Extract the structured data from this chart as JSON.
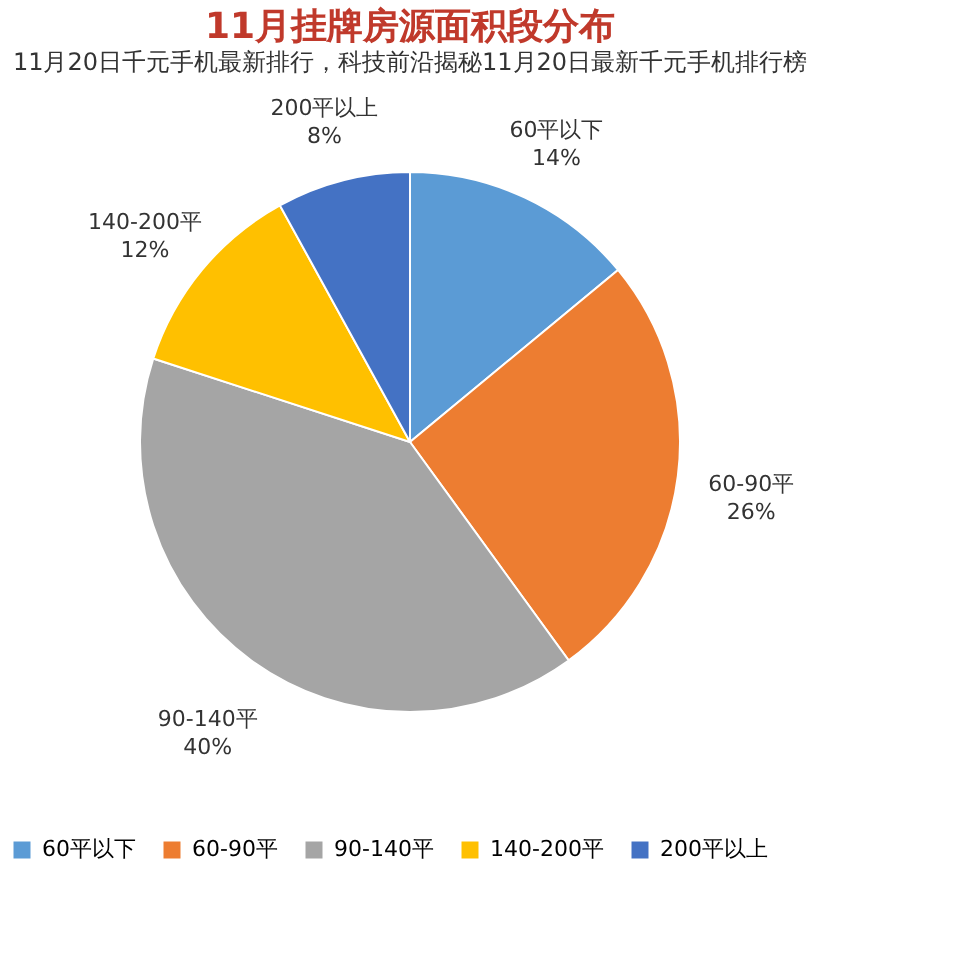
{
  "chart_data": {
    "type": "pie",
    "title": "11月挂牌房源面积段分布",
    "subtitle": "11月20日千元手机最新排行，科技前沿揭秘11月20日最新千元手机排行榜",
    "categories": [
      "60平以下",
      "60-90平",
      "90-140平",
      "140-200平",
      "200平以上"
    ],
    "values": [
      14,
      26,
      40,
      12,
      8
    ],
    "value_labels": [
      "14%",
      "26%",
      "40%",
      "12%",
      "8%"
    ],
    "colors": [
      "#5b9bd5",
      "#ed7d31",
      "#a5a5a5",
      "#ffc000",
      "#4472c4"
    ],
    "legend": "bottom"
  }
}
